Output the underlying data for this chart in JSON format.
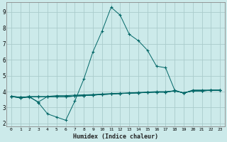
{
  "xlabel": "Humidex (Indice chaleur)",
  "background_color": "#cceaea",
  "grid_color": "#aacccc",
  "line_color": "#006666",
  "xlim": [
    -0.5,
    23.5
  ],
  "ylim": [
    1.8,
    9.6
  ],
  "yticks": [
    2,
    3,
    4,
    5,
    6,
    7,
    8,
    9
  ],
  "xticks": [
    0,
    1,
    2,
    3,
    4,
    5,
    6,
    7,
    8,
    9,
    10,
    11,
    12,
    13,
    14,
    15,
    16,
    17,
    18,
    19,
    20,
    21,
    22,
    23
  ],
  "series": [
    [
      3.7,
      3.6,
      3.7,
      3.3,
      2.6,
      2.4,
      2.2,
      3.4,
      4.8,
      6.5,
      7.8,
      9.3,
      8.8,
      7.6,
      7.2,
      6.6,
      5.6,
      5.5,
      4.1,
      3.9,
      4.1,
      4.1,
      4.1,
      4.1
    ],
    [
      3.7,
      3.6,
      3.65,
      3.35,
      3.7,
      3.75,
      3.75,
      3.78,
      3.8,
      3.82,
      3.85,
      3.88,
      3.9,
      3.92,
      3.95,
      3.97,
      4.0,
      4.0,
      4.05,
      3.92,
      4.05,
      4.05,
      4.08,
      4.08
    ],
    [
      3.7,
      3.65,
      3.68,
      3.68,
      3.68,
      3.68,
      3.68,
      3.72,
      3.75,
      3.78,
      3.82,
      3.85,
      3.88,
      3.9,
      3.92,
      3.95,
      3.97,
      3.97,
      4.05,
      3.92,
      4.05,
      4.05,
      4.08,
      4.08
    ],
    [
      3.7,
      3.65,
      3.68,
      3.68,
      3.68,
      3.68,
      3.68,
      3.72,
      3.75,
      3.78,
      3.82,
      3.85,
      3.88,
      3.9,
      3.92,
      3.95,
      3.97,
      3.97,
      4.05,
      3.92,
      4.05,
      4.05,
      4.08,
      4.08
    ],
    [
      3.7,
      3.65,
      3.68,
      3.68,
      3.68,
      3.68,
      3.68,
      3.72,
      3.75,
      3.78,
      3.82,
      3.85,
      3.88,
      3.9,
      3.92,
      3.95,
      3.97,
      3.97,
      4.05,
      3.92,
      4.05,
      4.05,
      4.08,
      4.08
    ]
  ]
}
